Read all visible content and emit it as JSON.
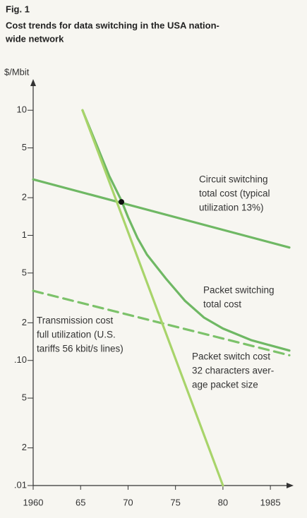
{
  "chart_data": {
    "type": "line",
    "figure_label": "Fig. 1",
    "title": [
      "Cost trends for data switching in the USA nation-",
      "wide network"
    ],
    "y_label": "$/Mbit",
    "log_y": true,
    "xlim": [
      1960,
      1987
    ],
    "ylim": [
      0.01,
      15
    ],
    "xticks": [
      1960,
      {
        "value": 1965,
        "label": "65"
      },
      {
        "value": 1970,
        "label": "70"
      },
      {
        "value": 1975,
        "label": "75"
      },
      {
        "value": 1980,
        "label": "80"
      },
      1985
    ],
    "yticks": [
      10,
      {
        "value": 5,
        "label": "5"
      },
      {
        "value": 2,
        "label": "2"
      },
      1,
      {
        "value": 0.5,
        "label": "5"
      },
      {
        "value": 0.2,
        "label": "2"
      },
      {
        "value": 0.1,
        "label": ".10"
      },
      {
        "value": 0.05,
        "label": "5"
      },
      {
        "value": 0.02,
        "label": "2"
      },
      {
        "value": 0.01,
        "label": ".01"
      }
    ],
    "series": [
      {
        "label": [
          "Circuit switching",
          "total cost (typical",
          "utilization 13%)"
        ],
        "color": "#6fb864",
        "dashed": false,
        "x": [
          1960,
          1987
        ],
        "values": [
          2.8,
          0.8
        ]
      },
      {
        "label": [
          "Packet switching",
          "total cost"
        ],
        "color": "#6fb864",
        "dashed": false,
        "x": [
          1965.2,
          1968,
          1969.3,
          1970,
          1971,
          1972,
          1974,
          1976,
          1978,
          1980,
          1983,
          1987
        ],
        "values": [
          10,
          3,
          1.9,
          1.4,
          0.95,
          0.7,
          0.45,
          0.3,
          0.22,
          0.18,
          0.145,
          0.12
        ]
      },
      {
        "label": [
          "Transmission cost",
          "full utilization (U.S.",
          "tariffs 56 kbit/s lines)"
        ],
        "color": "#7cc26a",
        "dashed": true,
        "x": [
          1960,
          1987
        ],
        "values": [
          0.36,
          0.11
        ]
      },
      {
        "label": [
          "Packet switch cost",
          "32 characters aver-",
          "age packet size"
        ],
        "color": "#a8d46a",
        "dashed": false,
        "x": [
          1965.2,
          1980
        ],
        "values": [
          10,
          0.01
        ]
      }
    ],
    "marker": {
      "x": 1969.3,
      "y": 1.85,
      "color": "#111111"
    }
  }
}
